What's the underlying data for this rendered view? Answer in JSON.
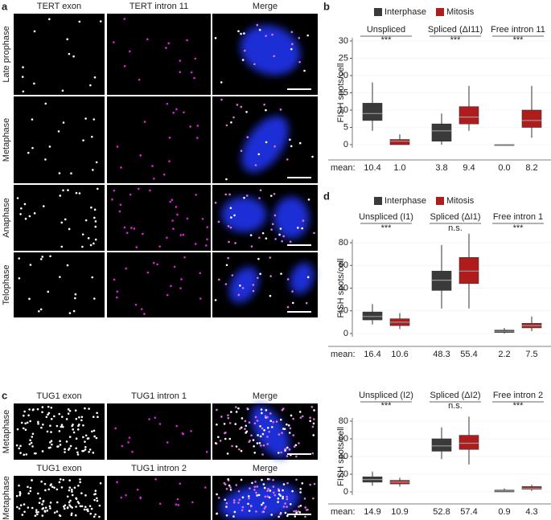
{
  "figure": {
    "panel_a": {
      "label": "a",
      "columns": [
        "TERT exon",
        "TERT intron 11",
        "Merge"
      ],
      "rows": [
        "Late prophase",
        "Metaphase",
        "Anaphase",
        "Telophase"
      ]
    },
    "panel_b_label": "b",
    "panel_c": {
      "label": "c",
      "blocks": [
        {
          "columns": [
            "TUG1 exon",
            "TUG1 intron 1",
            "Merge"
          ],
          "row": "Metaphase"
        },
        {
          "columns": [
            "TUG1 exon",
            "TUG1 intron 2",
            "Merge"
          ],
          "row": "Metaphase"
        }
      ]
    },
    "panel_d_label": "d"
  },
  "chart_data": [
    {
      "type": "box",
      "ylabel": "FISH spots/cell",
      "mean_title": "mean:",
      "show_legend": true,
      "categories": [
        "Unspliced",
        "Spliced (ΔI11)",
        "Free intron 11"
      ],
      "significance": [
        "***",
        "***",
        "***"
      ],
      "ylim": [
        0,
        30
      ],
      "yticks": [
        0,
        5,
        10,
        15,
        20,
        25,
        30
      ],
      "series": [
        {
          "name": "Interphase",
          "color": "#3a3a3a",
          "values": [
            {
              "low": 4,
              "q1": 7,
              "median": 9,
              "q3": 12,
              "high": 18
            },
            {
              "low": 0,
              "q1": 1,
              "median": 4,
              "q3": 6,
              "high": 9
            },
            {
              "low": 0,
              "q1": 0,
              "median": 0,
              "q3": 0,
              "high": 0
            }
          ],
          "means": [
            10.4,
            3.8,
            0.0
          ],
          "mean_labels": [
            "10.4",
            "3.8",
            "0.0"
          ]
        },
        {
          "name": "Mitosis",
          "color": "#b01c1c",
          "values": [
            {
              "low": 0,
              "q1": 0,
              "median": 1,
              "q3": 1.5,
              "high": 3
            },
            {
              "low": 4,
              "q1": 6,
              "median": 8,
              "q3": 11,
              "high": 17
            },
            {
              "low": 2,
              "q1": 5,
              "median": 7,
              "q3": 10,
              "high": 17
            }
          ],
          "means": [
            1.0,
            9.4,
            8.2
          ],
          "mean_labels": [
            "1.0",
            "9.4",
            "8.2"
          ]
        }
      ]
    },
    {
      "type": "box",
      "ylabel": "FISH spots/cell",
      "mean_title": "mean:",
      "show_legend": true,
      "categories": [
        "Unspliced (I1)",
        "Spliced (ΔI1)",
        "Free intron 1"
      ],
      "significance": [
        "***",
        "n.s.",
        "***"
      ],
      "ylim": [
        0,
        80
      ],
      "yticks": [
        0,
        20,
        40,
        60,
        80
      ],
      "series": [
        {
          "name": "Interphase",
          "color": "#3a3a3a",
          "values": [
            {
              "low": 8,
              "q1": 12,
              "median": 15,
              "q3": 19,
              "high": 26
            },
            {
              "low": 22,
              "q1": 38,
              "median": 47,
              "q3": 55,
              "high": 78
            },
            {
              "low": 0,
              "q1": 1,
              "median": 2,
              "q3": 3,
              "high": 5
            }
          ],
          "means": [
            16.4,
            48.3,
            2.2
          ],
          "mean_labels": [
            "16.4",
            "48.3",
            "2.2"
          ]
        },
        {
          "name": "Mitosis",
          "color": "#b01c1c",
          "values": [
            {
              "low": 4,
              "q1": 7,
              "median": 10,
              "q3": 13,
              "high": 18
            },
            {
              "low": 22,
              "q1": 44,
              "median": 55,
              "q3": 67,
              "high": 88
            },
            {
              "low": 2,
              "q1": 5,
              "median": 7,
              "q3": 9,
              "high": 15
            }
          ],
          "means": [
            10.6,
            55.4,
            7.5
          ],
          "mean_labels": [
            "10.6",
            "55.4",
            "7.5"
          ]
        }
      ]
    },
    {
      "type": "box",
      "ylabel": "FISH spots/cell",
      "mean_title": "mean:",
      "show_legend": false,
      "categories": [
        "Unspliced (I2)",
        "Spliced (ΔI2)",
        "Free intron 2"
      ],
      "significance": [
        "***",
        "n.s.",
        "***"
      ],
      "ylim": [
        0,
        80
      ],
      "yticks": [
        0,
        20,
        40,
        60,
        80
      ],
      "series": [
        {
          "name": "Interphase",
          "color": "#3a3a3a",
          "values": [
            {
              "low": 7,
              "q1": 11,
              "median": 14,
              "q3": 17,
              "high": 23
            },
            {
              "low": 37,
              "q1": 46,
              "median": 52,
              "q3": 60,
              "high": 73
            },
            {
              "low": 0,
              "q1": 0,
              "median": 1,
              "q3": 2,
              "high": 4
            }
          ],
          "means": [
            14.9,
            52.8,
            0.9
          ],
          "mean_labels": [
            "14.9",
            "52.8",
            "0.9"
          ]
        },
        {
          "name": "Mitosis",
          "color": "#b01c1c",
          "values": [
            {
              "low": 6,
              "q1": 9,
              "median": 11,
              "q3": 13,
              "high": 16
            },
            {
              "low": 31,
              "q1": 48,
              "median": 55,
              "q3": 64,
              "high": 85
            },
            {
              "low": 1,
              "q1": 3,
              "median": 4,
              "q3": 6,
              "high": 8
            }
          ],
          "means": [
            10.9,
            57.4,
            4.3
          ],
          "mean_labels": [
            "10.9",
            "57.4",
            "4.3"
          ]
        }
      ]
    }
  ]
}
